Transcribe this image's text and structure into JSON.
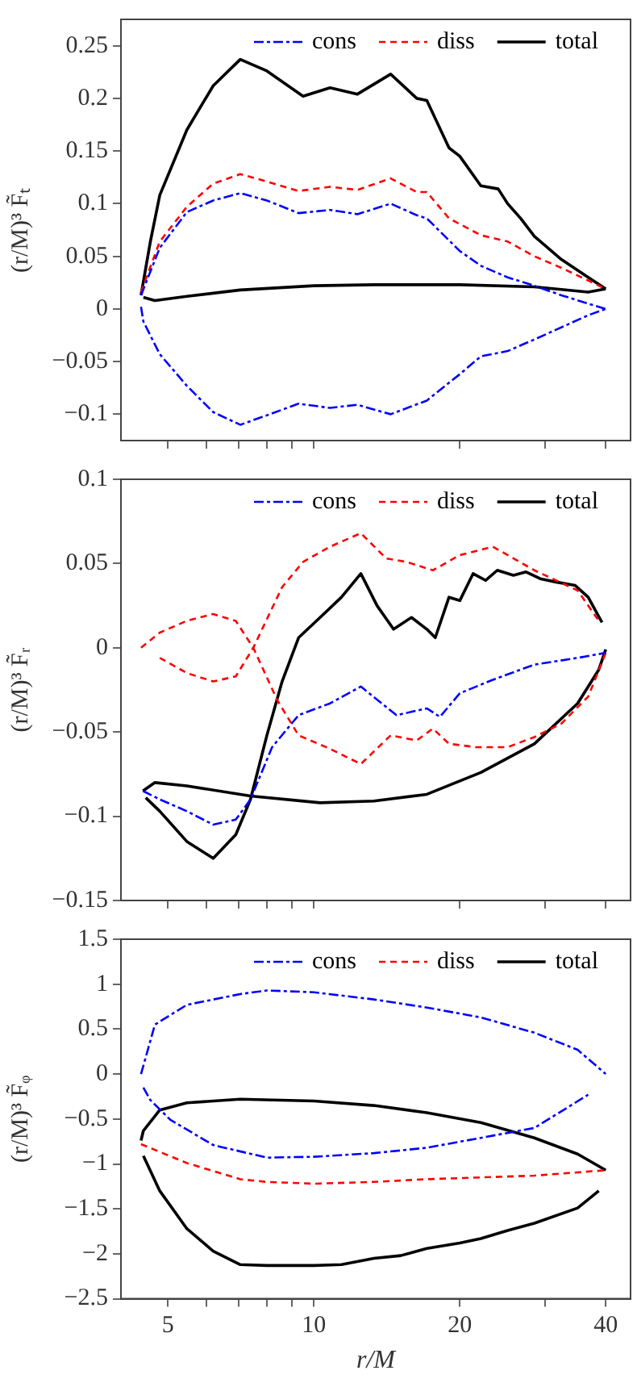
{
  "chart_data": [
    {
      "type": "line",
      "ylabel": "(r/M)³ F̃ₜ",
      "log": "x",
      "grid": false,
      "legend": "top right",
      "tick_labels": "y",
      "marker": "none",
      "xlim": [
        4,
        45
      ],
      "xticks": [
        5,
        {
          "value": 6,
          "label": null
        },
        {
          "value": 7,
          "label": null
        },
        {
          "value": 8,
          "label": null
        },
        {
          "value": 9,
          "label": null
        },
        10,
        20,
        {
          "value": 30,
          "label": null
        },
        40
      ],
      "ylim": [
        -0.125,
        0.275
      ],
      "yticks": [
        -0.1,
        -0.05,
        0,
        0.05,
        0.1,
        0.15,
        0.2,
        0.25
      ],
      "series": [
        {
          "name": "cons",
          "color": "#0000ff",
          "line_style": "dashdot",
          "x": [
            4.4,
            4.81,
            5.47,
            6.2,
            7.05,
            8,
            9.3,
            10.8,
            12.3,
            14.4,
            16.3,
            17.1,
            20,
            22.1,
            25.1,
            28.5,
            32.4,
            36.8,
            40
          ],
          "values": [
            0.013,
            0.058,
            0.092,
            0.103,
            0.11,
            0.103,
            0.091,
            0.094,
            0.09,
            0.1,
            0.089,
            0.086,
            0.055,
            0.041,
            0.03,
            0.022,
            0.013,
            0.005,
            0
          ]
        },
        {
          "color": "#0000ff",
          "line_style": "dashdot",
          "x": [
            4.4,
            4.45,
            4.81,
            5.47,
            6.2,
            7.05,
            8,
            9.3,
            10.8,
            12.3,
            14.4,
            17.1,
            20,
            22.1,
            25.1,
            28.5,
            36.8,
            40
          ],
          "values": [
            0.002,
            -0.012,
            -0.043,
            -0.073,
            -0.098,
            -0.11,
            -0.101,
            -0.09,
            -0.094,
            -0.091,
            -0.1,
            -0.087,
            -0.062,
            -0.045,
            -0.04,
            -0.029,
            -0.006,
            0
          ]
        },
        {
          "name": "diss",
          "color": "#ff0000",
          "line_style": "dashed",
          "x": [
            4.4,
            4.81,
            5.47,
            6.2,
            7.05,
            8,
            9.3,
            10.8,
            12.3,
            14.4,
            16.3,
            17.1,
            19,
            22.1,
            25.1,
            28.5,
            32.4,
            36.8,
            40
          ],
          "values": [
            0.016,
            0.064,
            0.097,
            0.119,
            0.128,
            0.121,
            0.112,
            0.116,
            0.113,
            0.124,
            0.111,
            0.111,
            0.086,
            0.07,
            0.064,
            0.05,
            0.039,
            0.027,
            0.019
          ]
        },
        {
          "name": "total",
          "color": "#000000",
          "line_style": "solid",
          "x": [
            4.4,
            4.6,
            4.81,
            5.47,
            6.2,
            7.05,
            8,
            9.5,
            10.8,
            12.3,
            14.4,
            16.3,
            17.1,
            19,
            20,
            22.1,
            24,
            25.1,
            26.7,
            28.5,
            32.4,
            36.8,
            40
          ],
          "values": [
            0.013,
            0.064,
            0.108,
            0.17,
            0.212,
            0.237,
            0.226,
            0.202,
            0.21,
            0.204,
            0.223,
            0.2,
            0.198,
            0.153,
            0.145,
            0.117,
            0.114,
            0.1,
            0.086,
            0.069,
            0.047,
            0.03,
            0.019
          ]
        },
        {
          "color": "#000000",
          "line_style": "solid",
          "x": [
            4.45,
            4.7,
            5.47,
            7.05,
            10,
            13.3,
            20,
            28.5,
            36.8,
            40
          ],
          "values": [
            0.011,
            0.008,
            0.012,
            0.018,
            0.022,
            0.023,
            0.023,
            0.021,
            0.016,
            0.019
          ]
        }
      ]
    },
    {
      "type": "line",
      "ylabel": "(r/M)³ F̃ᵣ",
      "log": "x",
      "grid": false,
      "legend": "top right",
      "tick_labels": "y",
      "marker": "none",
      "xlim": [
        4,
        45
      ],
      "xticks": [
        5,
        {
          "value": 6,
          "label": null
        },
        {
          "value": 7,
          "label": null
        },
        {
          "value": 8,
          "label": null
        },
        {
          "value": 9,
          "label": null
        },
        10,
        20,
        {
          "value": 30,
          "label": null
        },
        40
      ],
      "ylim": [
        -0.15,
        0.1
      ],
      "yticks": [
        -0.15,
        -0.1,
        -0.05,
        0,
        0.05,
        0.1
      ],
      "series": [
        {
          "name": "cons",
          "color": "#0000ff",
          "line_style": "dashdot",
          "x": [
            4.44,
            4.81,
            5.47,
            6.2,
            6.9,
            7.4,
            8.2,
            9.3,
            10.8,
            12.5,
            14.8,
            17.1,
            18.2,
            20,
            23.4,
            28.5,
            35,
            40
          ],
          "values": [
            -0.085,
            -0.09,
            -0.097,
            -0.105,
            -0.102,
            -0.09,
            -0.059,
            -0.04,
            -0.033,
            -0.023,
            -0.04,
            -0.036,
            -0.041,
            -0.027,
            -0.019,
            -0.01,
            -0.006,
            -0.003
          ]
        },
        {
          "name": "diss",
          "color": "#ff0000",
          "line_style": "dashed",
          "x": [
            4.4,
            4.81,
            5.47,
            6.2,
            6.9,
            7.5,
            8.4,
            9.3,
            10.8,
            12.5,
            14.4,
            16.3,
            17.6,
            19,
            21.6,
            25.1,
            28.5,
            32.4,
            36.8,
            40
          ],
          "values": [
            0,
            0.009,
            0.016,
            0.02,
            0.016,
            0,
            -0.031,
            -0.052,
            -0.06,
            -0.069,
            -0.052,
            -0.055,
            -0.048,
            -0.057,
            -0.059,
            -0.059,
            -0.053,
            -0.045,
            -0.029,
            -0.003
          ]
        },
        {
          "color": "#ff0000",
          "line_style": "dashed",
          "x": [
            4.81,
            5.47,
            6.2,
            6.9,
            7.5,
            8.6,
            9.5,
            10.8,
            12.5,
            14.1,
            15.5,
            17.6,
            20,
            23.4,
            28.5,
            35,
            38.7
          ],
          "values": [
            -0.006,
            -0.015,
            -0.02,
            -0.017,
            0,
            0.036,
            0.051,
            0.06,
            0.068,
            0.053,
            0.051,
            0.046,
            0.055,
            0.06,
            0.046,
            0.034,
            0.016
          ]
        },
        {
          "name": "total",
          "color": "#000000",
          "line_style": "solid",
          "x": [
            4.44,
            4.7,
            5.47,
            7.4,
            10.3,
            13.3,
            17.1,
            22.1,
            28.5,
            35,
            38.7,
            40
          ],
          "values": [
            -0.085,
            -0.08,
            -0.082,
            -0.088,
            -0.092,
            -0.091,
            -0.087,
            -0.074,
            -0.057,
            -0.033,
            -0.013,
            -0.001
          ]
        },
        {
          "color": "#000000",
          "line_style": "solid",
          "x": [
            4.5,
            4.81,
            5.47,
            6.2,
            6.9,
            7.4,
            8,
            8.6,
            9.3,
            10.3,
            11.4,
            12.5,
            13.5,
            14.6,
            15.9,
            17.1,
            17.8,
            19,
            20,
            21.3,
            22.6,
            23.9,
            25.8,
            27.4,
            29.3,
            31.6,
            34.6,
            36.8,
            39.3
          ],
          "values": [
            -0.089,
            -0.097,
            -0.115,
            -0.125,
            -0.111,
            -0.09,
            -0.052,
            -0.02,
            0.006,
            0.018,
            0.03,
            0.044,
            0.025,
            0.011,
            0.018,
            0.011,
            0.006,
            0.03,
            0.028,
            0.044,
            0.04,
            0.046,
            0.043,
            0.045,
            0.041,
            0.039,
            0.037,
            0.03,
            0.015
          ]
        }
      ]
    },
    {
      "type": "line",
      "xlabel": "r/M",
      "ylabel": "(r/M)³ F̃ᵩ",
      "log": "x",
      "grid": false,
      "legend": "top right",
      "marker": "none",
      "xlim": [
        4,
        45
      ],
      "xticks": [
        5,
        {
          "value": 6,
          "label": null
        },
        {
          "value": 7,
          "label": null
        },
        {
          "value": 8,
          "label": null
        },
        {
          "value": 9,
          "label": null
        },
        10,
        20,
        {
          "value": 30,
          "label": null
        },
        40
      ],
      "ylim": [
        -2.5,
        1.5
      ],
      "yticks": [
        -2.5,
        -2,
        -1.5,
        -1,
        -0.5,
        0,
        0.5,
        1,
        1.5
      ],
      "series": [
        {
          "name": "cons",
          "color": "#0000ff",
          "line_style": "dashdot",
          "x": [
            4.4,
            4.7,
            5.47,
            7.05,
            8,
            10,
            13.3,
            17.1,
            22.1,
            28.5,
            35,
            40
          ],
          "values": [
            0,
            0.55,
            0.77,
            0.89,
            0.93,
            0.91,
            0.83,
            0.74,
            0.63,
            0.46,
            0.27,
            0
          ]
        },
        {
          "color": "#0000ff",
          "line_style": "dashdot",
          "x": [
            4.45,
            4.6,
            5.06,
            6.2,
            8,
            10,
            13.3,
            17.1,
            22.1,
            28.5,
            36.8
          ],
          "values": [
            -0.15,
            -0.29,
            -0.51,
            -0.79,
            -0.93,
            -0.92,
            -0.88,
            -0.82,
            -0.71,
            -0.6,
            -0.23
          ]
        },
        {
          "name": "diss",
          "color": "#ff0000",
          "line_style": "dashed",
          "x": [
            4.4,
            5.47,
            7.05,
            8,
            10,
            13.3,
            17.1,
            22.1,
            28.5,
            40
          ],
          "values": [
            -0.78,
            -0.99,
            -1.17,
            -1.2,
            -1.22,
            -1.2,
            -1.17,
            -1.15,
            -1.13,
            -1.07
          ]
        },
        {
          "name": "total",
          "color": "#000000",
          "line_style": "solid",
          "x": [
            4.4,
            4.45,
            4.81,
            5.47,
            7.05,
            10,
            13.3,
            17.1,
            22.1,
            28.5,
            35,
            40
          ],
          "values": [
            -0.74,
            -0.63,
            -0.4,
            -0.32,
            -0.28,
            -0.3,
            -0.35,
            -0.43,
            -0.54,
            -0.71,
            -0.89,
            -1.07
          ]
        },
        {
          "color": "#000000",
          "line_style": "solid",
          "x": [
            4.45,
            4.81,
            5.47,
            6.2,
            7.05,
            8,
            10,
            11.4,
            13.3,
            15.1,
            17.1,
            20,
            22.1,
            25.1,
            28.5,
            35,
            38.7
          ],
          "values": [
            -0.91,
            -1.3,
            -1.72,
            -1.97,
            -2.12,
            -2.13,
            -2.13,
            -2.12,
            -2.05,
            -2.02,
            -1.94,
            -1.88,
            -1.83,
            -1.74,
            -1.66,
            -1.49,
            -1.3
          ]
        }
      ]
    }
  ]
}
